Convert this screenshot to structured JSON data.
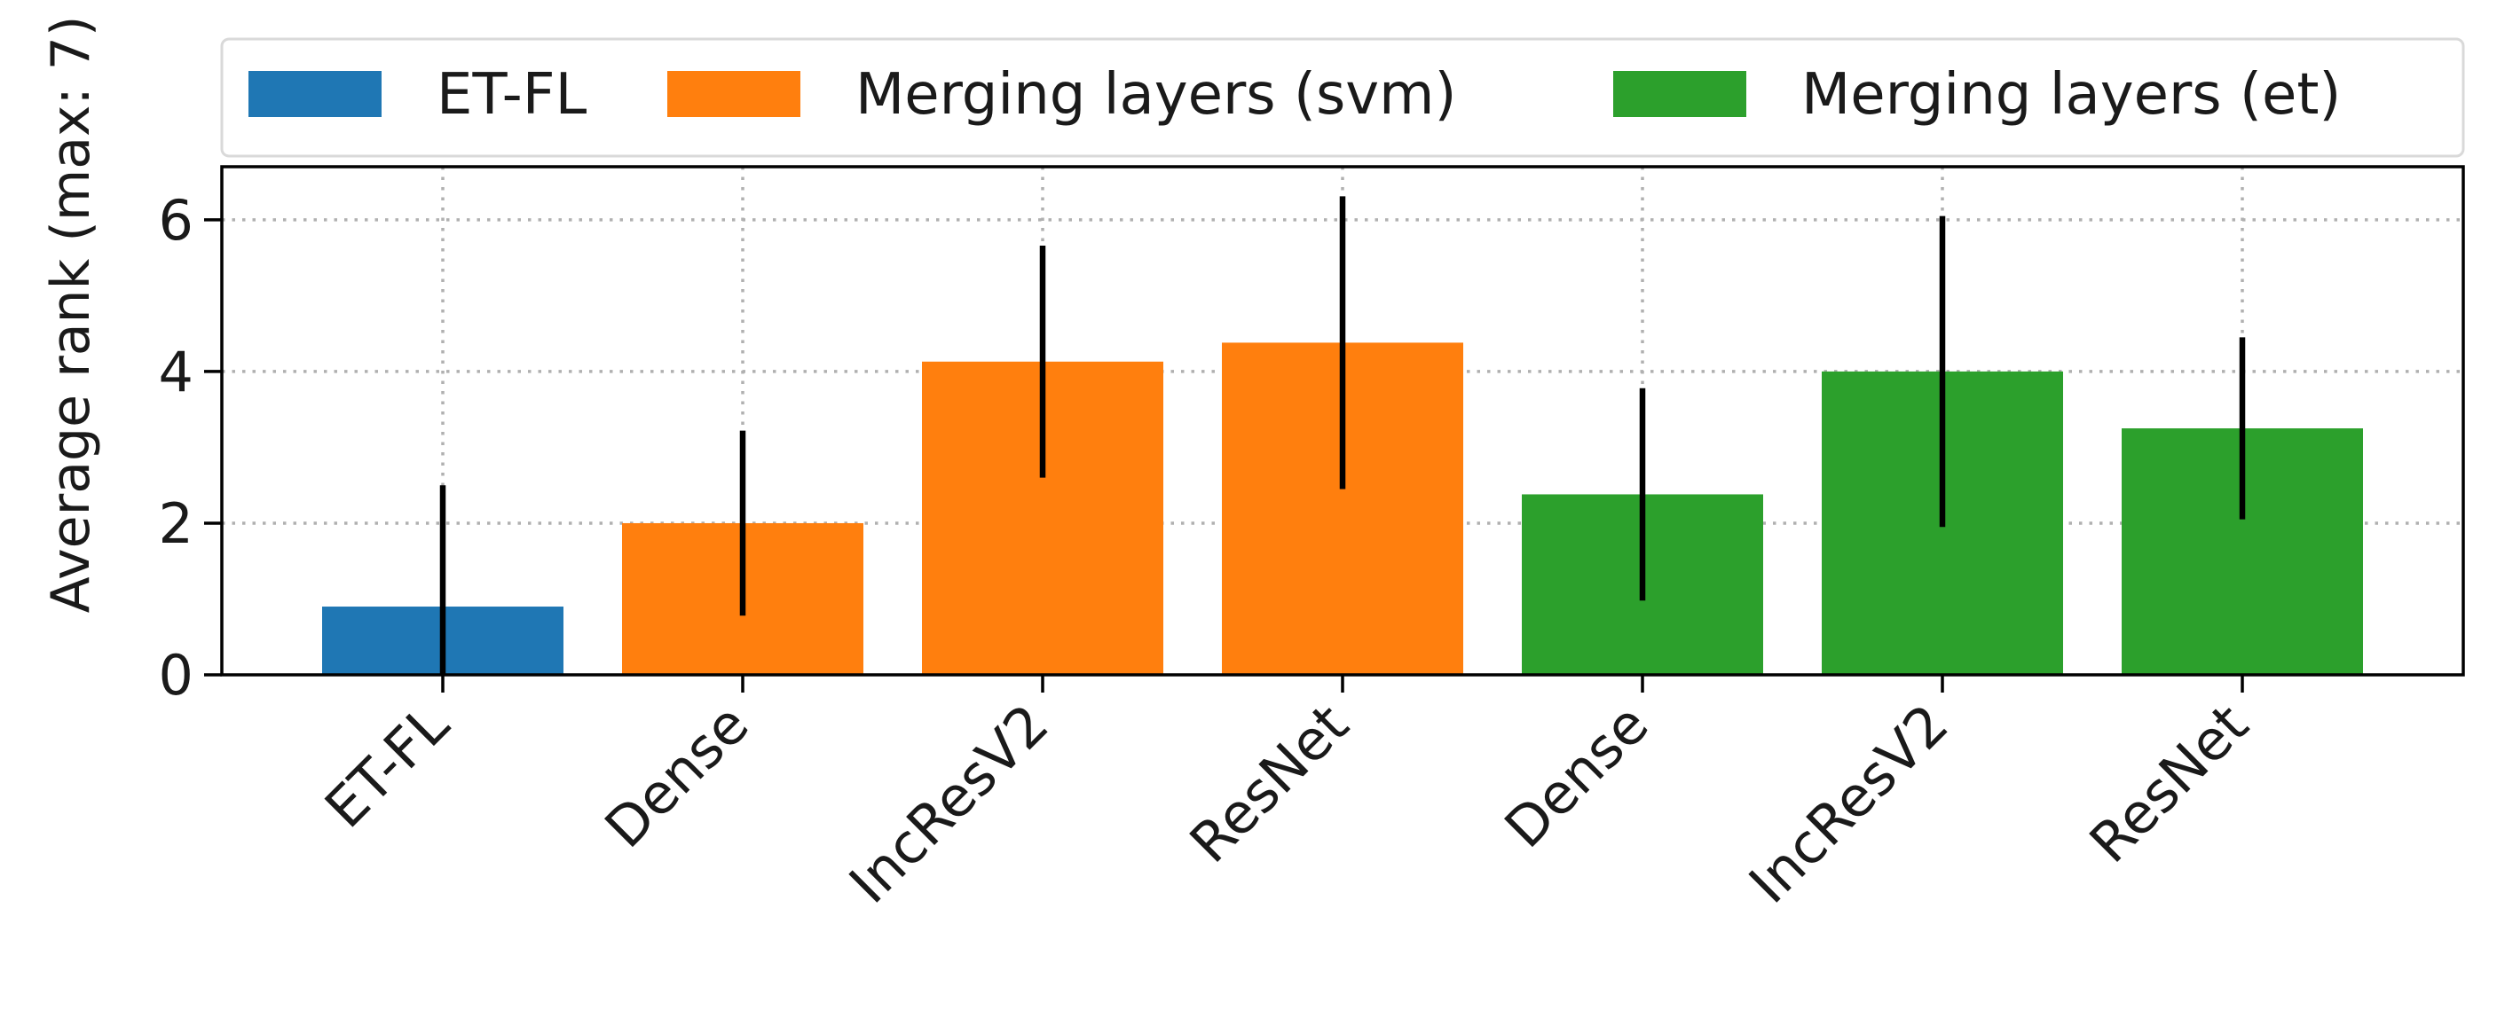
{
  "chart_data": {
    "type": "bar",
    "ylabel": "Average rank (max: 7)",
    "ylim": [
      0,
      6.7
    ],
    "yticks": [
      0,
      2,
      4,
      6
    ],
    "grid": true,
    "legend_position": "top",
    "categories": [
      "ET-FL",
      "Dense",
      "IncResV2",
      "ResNet",
      "Dense",
      "IncResV2",
      "ResNet"
    ],
    "groups": [
      "ET-FL",
      "Merging layers (svm)",
      "Merging layers (svm)",
      "Merging layers (svm)",
      "Merging layers (et)",
      "Merging layers (et)",
      "Merging layers (et)"
    ],
    "values": [
      0.9,
      2.0,
      4.13,
      4.38,
      2.38,
      4.0,
      3.25
    ],
    "error": [
      1.6,
      1.22,
      1.53,
      1.93,
      1.4,
      2.05,
      1.2
    ],
    "series": [
      {
        "name": "ET-FL",
        "color": "#1f77b4"
      },
      {
        "name": "Merging layers (svm)",
        "color": "#ff7f0e"
      },
      {
        "name": "Merging layers (et)",
        "color": "#2ca02c"
      }
    ]
  }
}
